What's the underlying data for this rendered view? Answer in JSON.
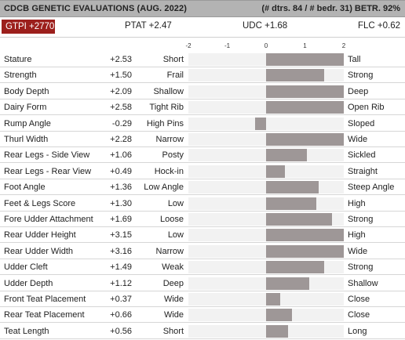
{
  "header": {
    "title": "CDCB GENETIC EVALUATIONS (AUG. 2022)",
    "right": "(# dtrs. 84 / # bedr. 31) BETR. 92%"
  },
  "indexes": {
    "gtpi": "GTPI +2770",
    "ptat": "PTAT +2.47",
    "udc": "UDC +1.68",
    "flc": "FLC +0.62"
  },
  "chart_data": {
    "type": "bar",
    "orientation": "horizontal",
    "xlim": [
      -2,
      2
    ],
    "ticks": [
      "-2",
      "-1",
      "0",
      "1",
      "2"
    ],
    "colors": {
      "bar": "#9e9797",
      "track": "#f2f2f2",
      "gtpi_badge": "#9c1f1c",
      "header": "#b3b3b3"
    },
    "traits": [
      {
        "name": "Stature",
        "value": 2.53,
        "label": "+2.53",
        "low": "Short",
        "high": "Tall"
      },
      {
        "name": "Strength",
        "value": 1.5,
        "label": "+1.50",
        "low": "Frail",
        "high": "Strong"
      },
      {
        "name": "Body Depth",
        "value": 2.09,
        "label": "+2.09",
        "low": "Shallow",
        "high": "Deep"
      },
      {
        "name": "Dairy Form",
        "value": 2.58,
        "label": "+2.58",
        "low": "Tight Rib",
        "high": "Open Rib"
      },
      {
        "name": "Rump Angle",
        "value": -0.29,
        "label": "-0.29",
        "low": "High Pins",
        "high": "Sloped"
      },
      {
        "name": "Thurl Width",
        "value": 2.28,
        "label": "+2.28",
        "low": "Narrow",
        "high": "Wide"
      },
      {
        "name": "Rear Legs - Side View",
        "value": 1.06,
        "label": "+1.06",
        "low": "Posty",
        "high": "Sickled"
      },
      {
        "name": "Rear Legs - Rear View",
        "value": 0.49,
        "label": "+0.49",
        "low": "Hock-in",
        "high": "Straight"
      },
      {
        "name": "Foot Angle",
        "value": 1.36,
        "label": "+1.36",
        "low": "Low Angle",
        "high": "Steep Angle"
      },
      {
        "name": "Feet & Legs Score",
        "value": 1.3,
        "label": "+1.30",
        "low": "Low",
        "high": "High"
      },
      {
        "name": "Fore Udder Attachment",
        "value": 1.69,
        "label": "+1.69",
        "low": "Loose",
        "high": "Strong"
      },
      {
        "name": "Rear Udder Height",
        "value": 3.15,
        "label": "+3.15",
        "low": "Low",
        "high": "High"
      },
      {
        "name": "Rear Udder Width",
        "value": 3.16,
        "label": "+3.16",
        "low": "Narrow",
        "high": "Wide"
      },
      {
        "name": "Udder Cleft",
        "value": 1.49,
        "label": "+1.49",
        "low": "Weak",
        "high": "Strong"
      },
      {
        "name": "Udder Depth",
        "value": 1.12,
        "label": "+1.12",
        "low": "Deep",
        "high": "Shallow"
      },
      {
        "name": "Front Teat Placement",
        "value": 0.37,
        "label": "+0.37",
        "low": "Wide",
        "high": "Close"
      },
      {
        "name": "Rear Teat Placement",
        "value": 0.66,
        "label": "+0.66",
        "low": "Wide",
        "high": "Close"
      },
      {
        "name": "Teat Length",
        "value": 0.56,
        "label": "+0.56",
        "low": "Short",
        "high": "Long"
      }
    ]
  }
}
